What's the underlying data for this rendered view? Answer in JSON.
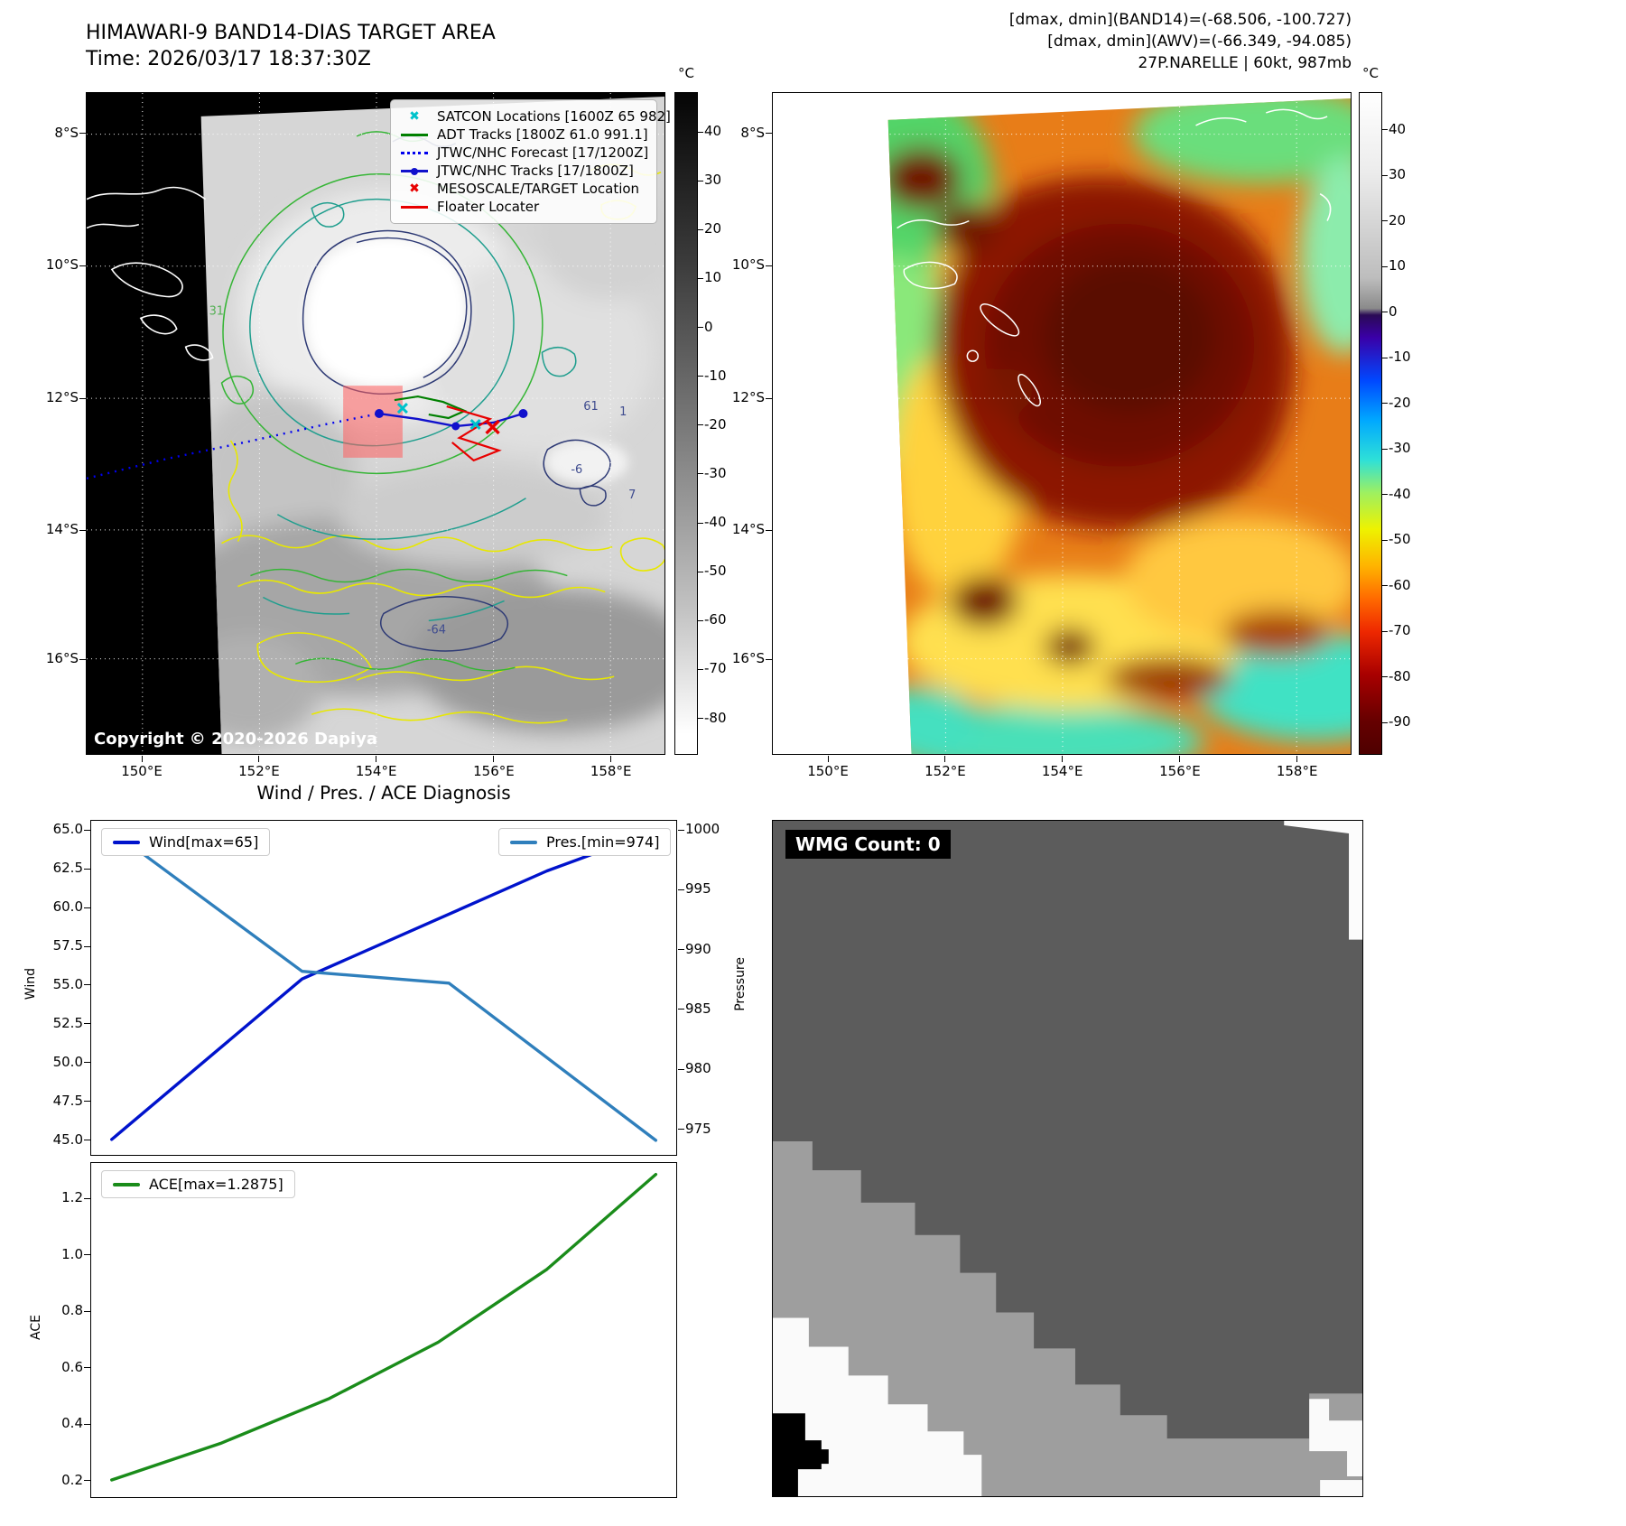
{
  "band14": {
    "title": "HIMAWARI-9 BAND14-DIAS TARGET AREA",
    "time_line": "Time: 2026/03/17 18:37:30Z",
    "copyright": "Copyright © 2020-2026 Dapiya",
    "legend": [
      {
        "marker": "satcon-cyan-x",
        "label": "SATCON Locations [1600Z 65 982]"
      },
      {
        "marker": "adt-green-line",
        "label": "ADT Tracks [1800Z 61.0 991.1]"
      },
      {
        "marker": "forecast-blue-dotted",
        "label": "JTWC/NHC Forecast [17/1200Z]"
      },
      {
        "marker": "jtwc-blue-line-marker",
        "label": "JTWC/NHC Tracks [17/1800Z]"
      },
      {
        "marker": "target-red-x",
        "label": "MESOSCALE/TARGET Location"
      },
      {
        "marker": "floater-red-line",
        "label": "Floater Locater"
      }
    ],
    "lat_ticks": [
      "8°S",
      "10°S",
      "12°S",
      "14°S",
      "16°S"
    ],
    "lon_ticks": [
      "150°E",
      "152°E",
      "154°E",
      "156°E",
      "158°E"
    ],
    "colorbar_unit": "°C",
    "colorbar_ticks": [
      "40",
      "30",
      "20",
      "10",
      "0",
      "-10",
      "-20",
      "-30",
      "-40",
      "-50",
      "-60",
      "-70",
      "-80"
    ],
    "contour_labels": [
      "31",
      "-64",
      "61",
      "1",
      "-6",
      "7"
    ]
  },
  "awv": {
    "annotation_lines": [
      "[dmax, dmin](BAND14)=(-68.506, -100.727)",
      "[dmax, dmin](AWV)=(-66.349, -94.085)",
      "27P.NARELLE | 60kt, 987mb"
    ],
    "lat_ticks": [
      "8°S",
      "10°S",
      "12°S",
      "14°S",
      "16°S"
    ],
    "lon_ticks": [
      "150°E",
      "152°E",
      "154°E",
      "156°E",
      "158°E"
    ],
    "colorbar_unit": "°C",
    "colorbar_ticks": [
      "40",
      "30",
      "20",
      "10",
      "0",
      "-10",
      "-20",
      "-30",
      "-40",
      "-50",
      "-60",
      "-70",
      "-80",
      "-90"
    ]
  },
  "diagnosis": {
    "title": "Wind / Pres. / ACE Diagnosis",
    "wind_axis_label": "Wind",
    "pressure_axis_label": "Pressure",
    "ace_axis_label": "ACE"
  },
  "wmg": {
    "count_label": "WMG Count: 0"
  },
  "colors": {
    "target_box": "#ff5f5f",
    "adt_track": "#008000",
    "jtwc_track": "#1111cc",
    "forecast_line": "#0000ee",
    "floater_line": "#e80000",
    "satcon_marker": "#00c2cb"
  },
  "chart_data": [
    {
      "type": "line",
      "title": "Wind / Pres. / ACE Diagnosis",
      "xlabel": "",
      "ylabel": "Wind",
      "y2label": "Pressure",
      "ylim": [
        44.0,
        65.65
      ],
      "y2lim": [
        972.78,
        1000.84
      ],
      "yticks": [
        "45.0",
        "47.5",
        "50.0",
        "52.5",
        "55.0",
        "57.5",
        "60.0",
        "62.5",
        "65.0"
      ],
      "y2ticks": [
        "975",
        "980",
        "985",
        "990",
        "995",
        "1000"
      ],
      "grid": false,
      "legend_position": "upper-left and upper-right",
      "series": [
        {
          "name": "Wind[max=65]",
          "axis": "left",
          "color": "#0013cc",
          "x": [
            0,
            0.35,
            0.8,
            1
          ],
          "values": [
            45,
            55.4,
            62.4,
            65
          ]
        },
        {
          "name": "Pres.[min=974]",
          "axis": "right",
          "color": "#2f7fbc",
          "x": [
            0,
            0.35,
            0.62,
            1
          ],
          "values": [
            1000,
            988.2,
            987.2,
            974
          ]
        }
      ]
    },
    {
      "type": "line",
      "ylabel": "ACE",
      "ylim": [
        0.139,
        1.328
      ],
      "yticks": [
        "0.2",
        "0.4",
        "0.6",
        "0.8",
        "1.0",
        "1.2"
      ],
      "grid": false,
      "legend_position": "upper-left",
      "series": [
        {
          "name": "ACE[max=1.2875]",
          "axis": "left",
          "color": "#1a8c1a",
          "x": [
            0,
            0.2,
            0.4,
            0.6,
            0.8,
            1
          ],
          "values": [
            0.2,
            0.33,
            0.49,
            0.69,
            0.95,
            1.2875
          ]
        }
      ]
    }
  ]
}
